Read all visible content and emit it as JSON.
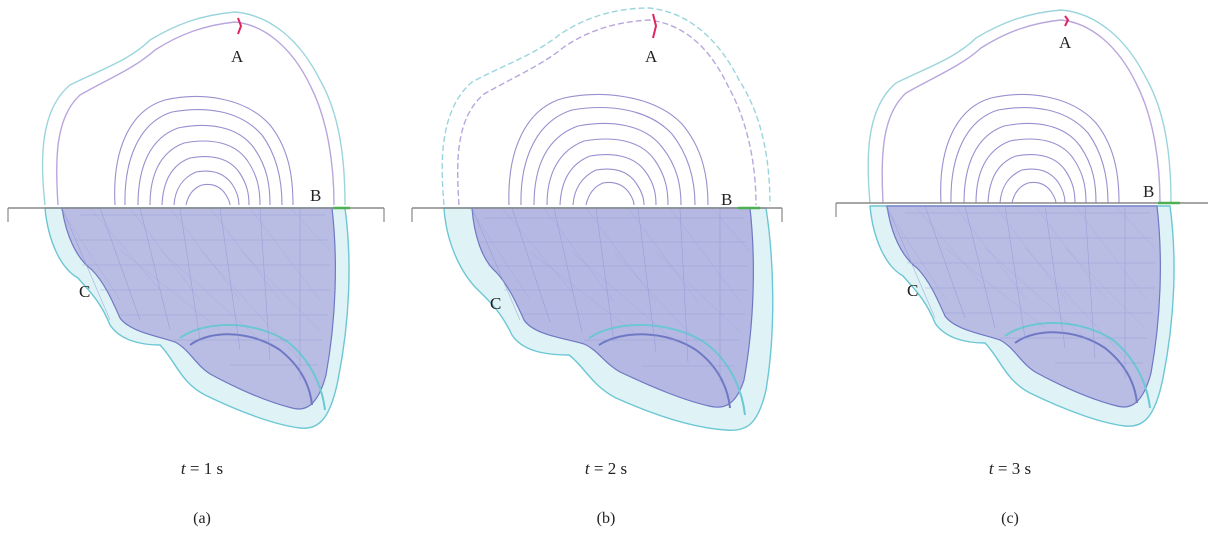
{
  "panels": [
    {
      "sublabel": "(a)",
      "time_var": "t",
      "time_rest": " = 1 s",
      "points": {
        "A": "A",
        "B": "B",
        "C": "C"
      }
    },
    {
      "sublabel": "(b)",
      "time_var": "t",
      "time_rest": " = 2 s",
      "points": {
        "A": "A",
        "B": "B",
        "C": "C"
      }
    },
    {
      "sublabel": "(c)",
      "time_var": "t",
      "time_rest": " = 3 s",
      "points": {
        "A": "A",
        "B": "B",
        "C": "C"
      }
    }
  ],
  "colors": {
    "outer_contour": "#9bd5dc",
    "inner_contour": "#9a8fcf",
    "mesh_outer": "#6cc7d4",
    "mesh_inner": "#6f78c4",
    "divider": "#888888",
    "marker": "#e0245e",
    "edge_mark": "#4caf50"
  }
}
